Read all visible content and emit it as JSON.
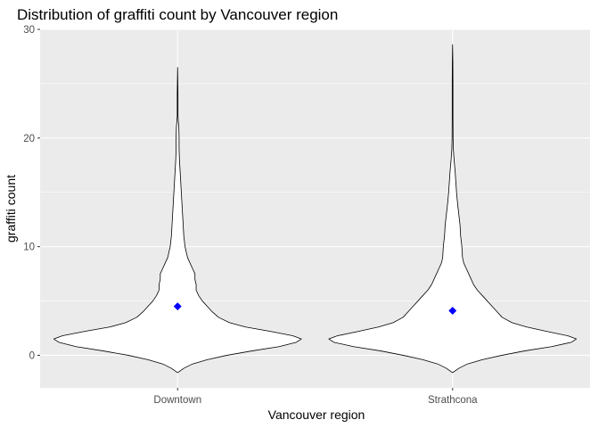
{
  "chart_data": {
    "type": "violin",
    "title": "Distribution of graffiti count by Vancouver region",
    "xlabel": "Vancouver region",
    "ylabel": "graffiti count",
    "categories": [
      "Downtown",
      "Strathcona"
    ],
    "ylim": [
      -3,
      30
    ],
    "yticks": [
      0,
      10,
      20,
      30
    ],
    "grid": true,
    "panel_background": "#ebebeb",
    "violin_fill": "#ffffff",
    "violin_outline": "#000000",
    "mean_color": "#0000ff",
    "means": [
      4.5,
      4.1
    ],
    "series": [
      {
        "name": "Downtown",
        "mean": 4.5,
        "profile": [
          [
            -1.6,
            0.0
          ],
          [
            -1.2,
            0.05
          ],
          [
            -0.8,
            0.12
          ],
          [
            -0.4,
            0.24
          ],
          [
            0.0,
            0.4
          ],
          [
            0.4,
            0.6
          ],
          [
            0.8,
            0.82
          ],
          [
            1.2,
            0.96
          ],
          [
            1.5,
            1.0
          ],
          [
            1.8,
            0.93
          ],
          [
            2.2,
            0.75
          ],
          [
            2.6,
            0.55
          ],
          [
            3.0,
            0.42
          ],
          [
            3.5,
            0.33
          ],
          [
            4.0,
            0.28
          ],
          [
            4.5,
            0.24
          ],
          [
            5.0,
            0.2
          ],
          [
            5.5,
            0.17
          ],
          [
            6.0,
            0.15
          ],
          [
            6.5,
            0.15
          ],
          [
            7.0,
            0.14
          ],
          [
            7.5,
            0.14
          ],
          [
            8.0,
            0.12
          ],
          [
            8.5,
            0.1
          ],
          [
            9.0,
            0.08
          ],
          [
            10.0,
            0.06
          ],
          [
            11.0,
            0.05
          ],
          [
            12.0,
            0.045
          ],
          [
            13.0,
            0.04
          ],
          [
            14.0,
            0.035
          ],
          [
            15.0,
            0.03
          ],
          [
            16.0,
            0.025
          ],
          [
            17.0,
            0.02
          ],
          [
            18.0,
            0.015
          ],
          [
            19.0,
            0.012
          ],
          [
            20.0,
            0.012
          ],
          [
            21.0,
            0.01
          ],
          [
            21.5,
            0.006
          ],
          [
            22.0,
            0.003
          ],
          [
            24.0,
            0.003
          ],
          [
            26.5,
            0.0
          ]
        ]
      },
      {
        "name": "Strathcona",
        "mean": 4.1,
        "profile": [
          [
            -1.6,
            0.0
          ],
          [
            -1.2,
            0.05
          ],
          [
            -0.8,
            0.12
          ],
          [
            -0.4,
            0.24
          ],
          [
            0.0,
            0.4
          ],
          [
            0.4,
            0.58
          ],
          [
            0.8,
            0.8
          ],
          [
            1.2,
            0.96
          ],
          [
            1.5,
            1.0
          ],
          [
            1.8,
            0.93
          ],
          [
            2.2,
            0.76
          ],
          [
            2.6,
            0.6
          ],
          [
            3.0,
            0.48
          ],
          [
            3.5,
            0.4
          ],
          [
            4.0,
            0.36
          ],
          [
            4.5,
            0.32
          ],
          [
            5.0,
            0.28
          ],
          [
            5.5,
            0.24
          ],
          [
            6.0,
            0.2
          ],
          [
            6.5,
            0.17
          ],
          [
            7.0,
            0.15
          ],
          [
            7.5,
            0.13
          ],
          [
            8.0,
            0.11
          ],
          [
            8.5,
            0.09
          ],
          [
            9.0,
            0.08
          ],
          [
            10.0,
            0.075
          ],
          [
            11.0,
            0.065
          ],
          [
            12.0,
            0.06
          ],
          [
            13.0,
            0.05
          ],
          [
            14.0,
            0.04
          ],
          [
            15.0,
            0.032
          ],
          [
            16.0,
            0.026
          ],
          [
            17.0,
            0.02
          ],
          [
            18.0,
            0.012
          ],
          [
            19.0,
            0.006
          ],
          [
            20.0,
            0.004
          ],
          [
            22.0,
            0.003
          ],
          [
            25.0,
            0.003
          ],
          [
            27.0,
            0.002
          ],
          [
            28.6,
            0.0
          ]
        ]
      }
    ]
  }
}
